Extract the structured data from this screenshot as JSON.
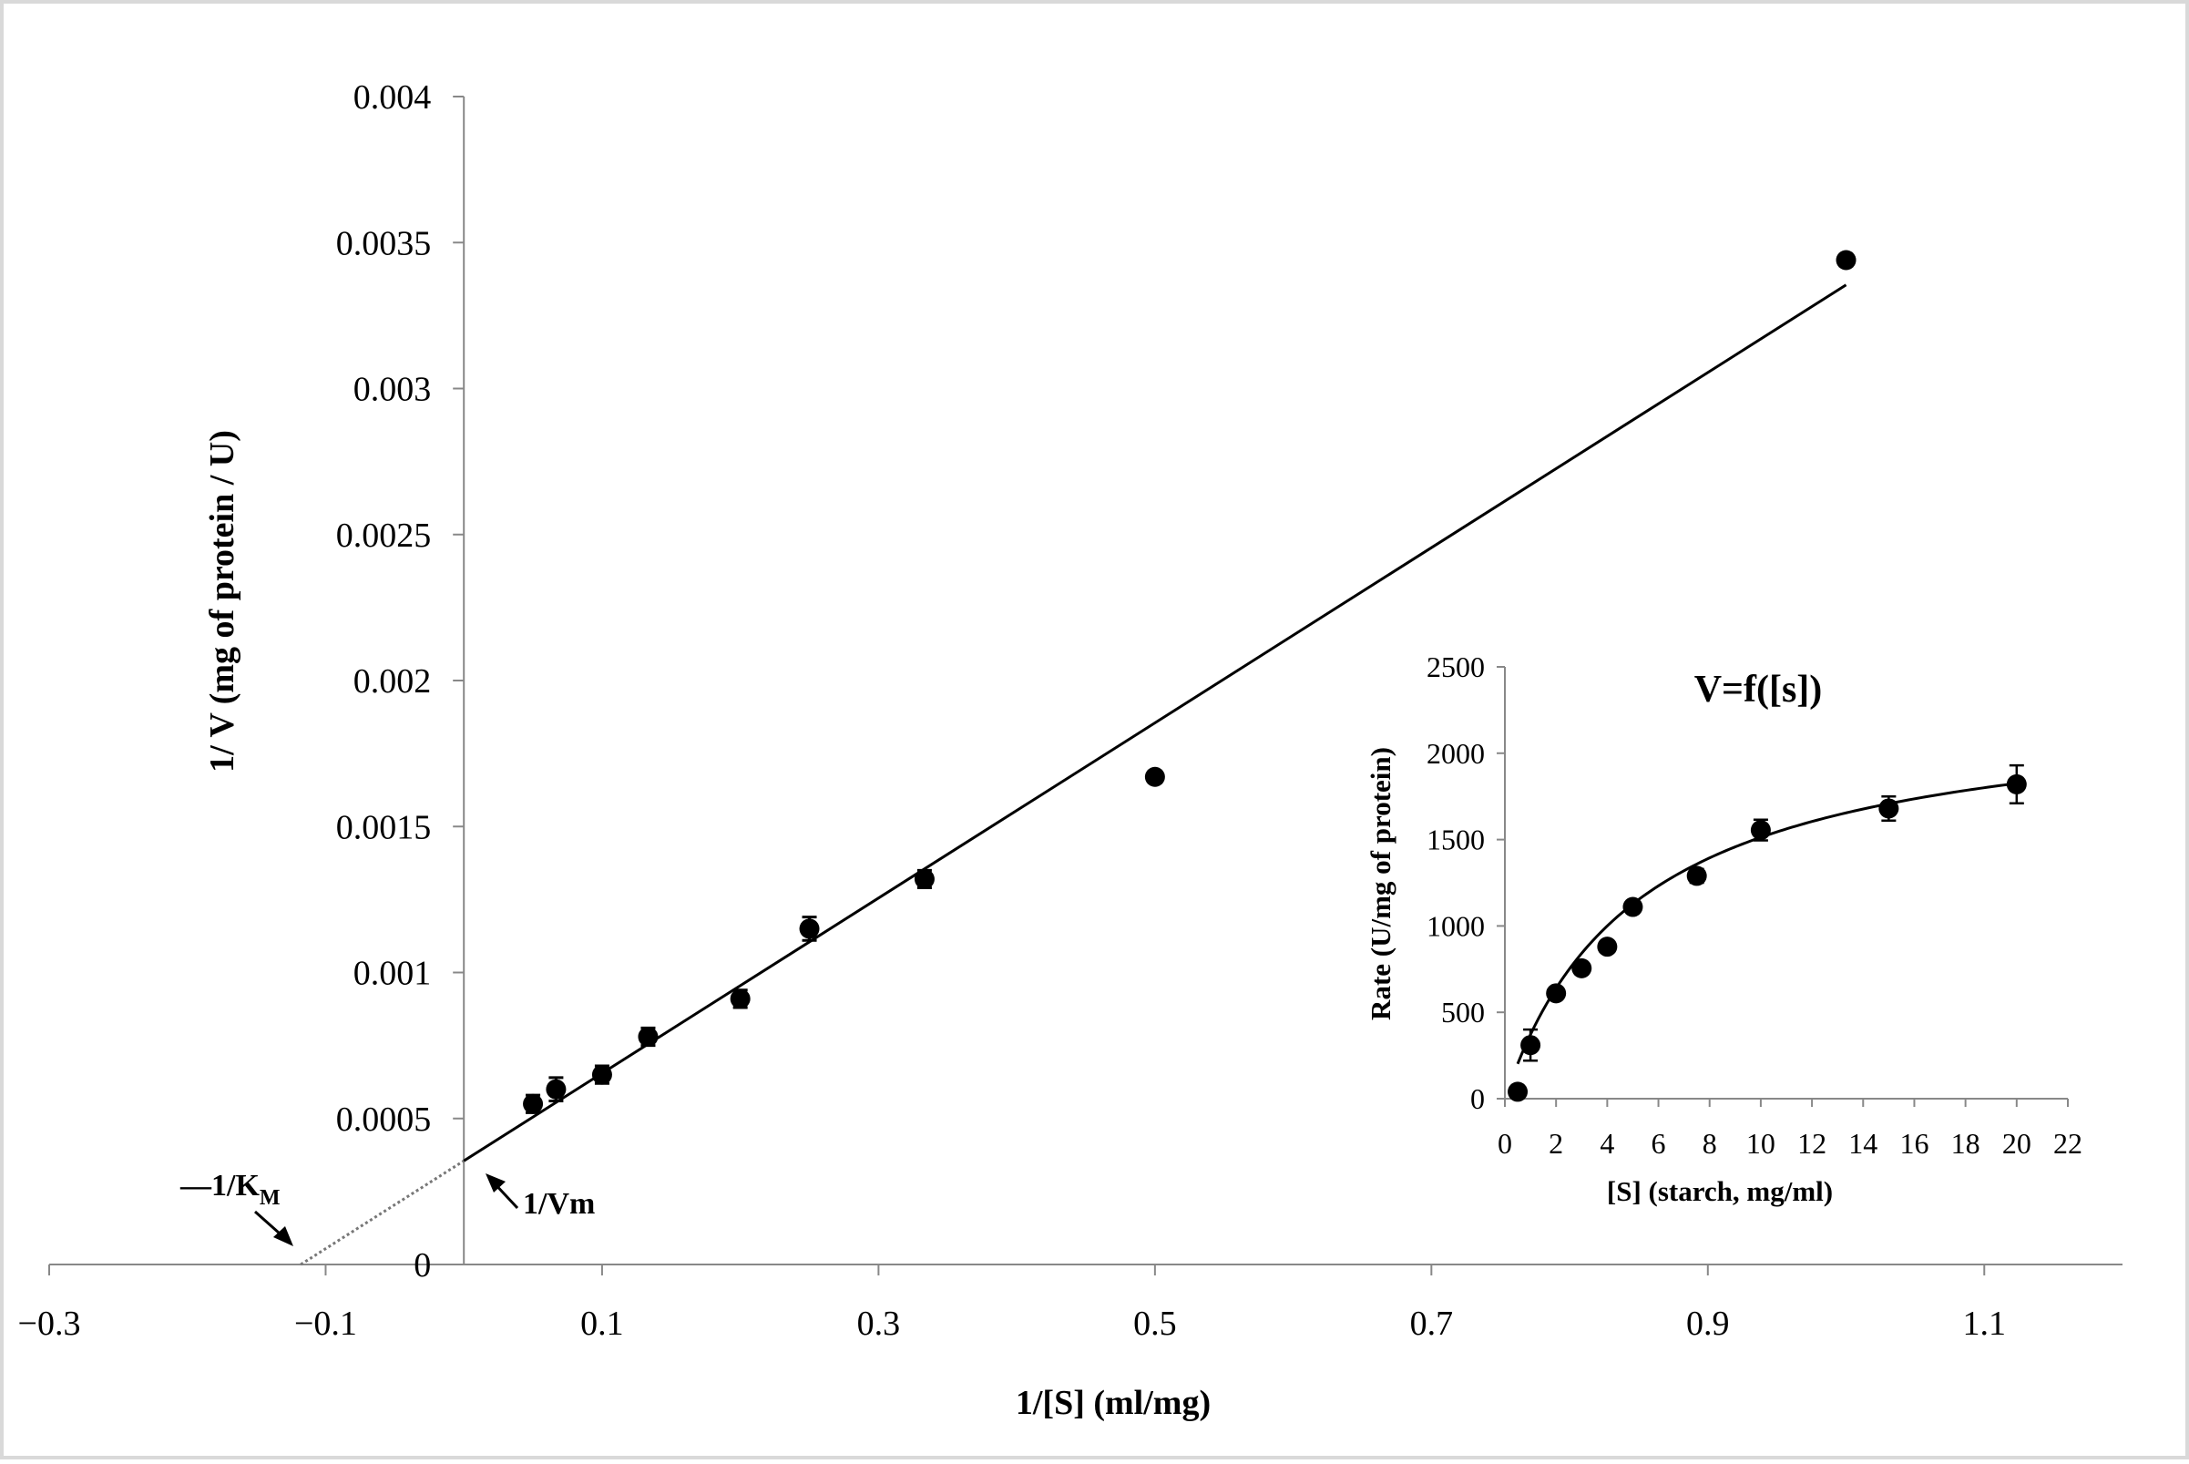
{
  "chart_data": [
    {
      "type": "scatter",
      "name": "lineweaver-burk",
      "xlabel": "1/[S] (ml/mg)",
      "ylabel": "1/ V (mg of protein / U)",
      "xlim": [
        -0.3,
        1.2
      ],
      "ylim": [
        0,
        0.004
      ],
      "x_ticks": [
        "−0.3",
        "−0.1",
        "0.1",
        "0.3",
        "0.5",
        "0.7",
        "0.9",
        "1.1"
      ],
      "x_tick_values": [
        -0.3,
        -0.1,
        0.1,
        0.3,
        0.5,
        0.7,
        0.9,
        1.1
      ],
      "y_ticks": [
        "0",
        "0.0005",
        "0.001",
        "0.0015",
        "0.002",
        "0.0025",
        "0.003",
        "0.0035",
        "0.004"
      ],
      "y_tick_values": [
        0,
        0.0005,
        0.001,
        0.0015,
        0.002,
        0.0025,
        0.003,
        0.0035,
        0.004
      ],
      "points": [
        {
          "x": 0.05,
          "y": 0.00055,
          "err": 3e-05
        },
        {
          "x": 0.0667,
          "y": 0.0006,
          "err": 4e-05
        },
        {
          "x": 0.1,
          "y": 0.00065,
          "err": 3e-05
        },
        {
          "x": 0.1333,
          "y": 0.00078,
          "err": 3e-05
        },
        {
          "x": 0.2,
          "y": 0.00091,
          "err": 3e-05
        },
        {
          "x": 0.25,
          "y": 0.00115,
          "err": 4e-05
        },
        {
          "x": 0.3333,
          "y": 0.00132,
          "err": 3e-05
        },
        {
          "x": 0.5,
          "y": 0.00167,
          "err": 2e-05
        },
        {
          "x": 1.0,
          "y": 0.00344,
          "err": 2e-05
        }
      ],
      "fit_line": {
        "x0": 0.0,
        "y0": 0.000355,
        "x1": 1.0,
        "y1": 0.003355
      },
      "extrapolation": {
        "x0": -0.118,
        "y0": 0.0,
        "x1": 0.0,
        "y1": 0.000355
      },
      "annotations": {
        "km_prefix": "—1/K",
        "km_sub": "M",
        "vm": "1/Vm"
      }
    },
    {
      "type": "scatter",
      "name": "inset-michaelis-menten",
      "title": "V=f([s])",
      "xlabel": "[S] (starch, mg/ml)",
      "ylabel": "Rate (U/mg of protein)",
      "xlim": [
        0,
        22
      ],
      "ylim": [
        0,
        2500
      ],
      "x_ticks": [
        "0",
        "2",
        "4",
        "6",
        "8",
        "10",
        "12",
        "14",
        "16",
        "18",
        "20",
        "22"
      ],
      "x_tick_values": [
        0,
        2,
        4,
        6,
        8,
        10,
        12,
        14,
        16,
        18,
        20,
        22
      ],
      "y_ticks": [
        "0",
        "500",
        "1000",
        "1500",
        "2000",
        "2500"
      ],
      "y_tick_values": [
        0,
        500,
        1000,
        1500,
        2000,
        2500
      ],
      "points": [
        {
          "x": 0.5,
          "y": 40,
          "err": 20
        },
        {
          "x": 1,
          "y": 310,
          "err": 90
        },
        {
          "x": 2,
          "y": 610,
          "err": 30
        },
        {
          "x": 3,
          "y": 755,
          "err": 30
        },
        {
          "x": 4,
          "y": 880,
          "err": 30
        },
        {
          "x": 5,
          "y": 1110,
          "err": 30
        },
        {
          "x": 7.5,
          "y": 1290,
          "err": 40
        },
        {
          "x": 10,
          "y": 1555,
          "err": 60
        },
        {
          "x": 15,
          "y": 1680,
          "err": 70
        },
        {
          "x": 20,
          "y": 1820,
          "err": 110
        }
      ],
      "fit_curve": {
        "vmax": 2300,
        "km": 5.2,
        "x_start": 0.5,
        "x_end": 20
      }
    }
  ]
}
